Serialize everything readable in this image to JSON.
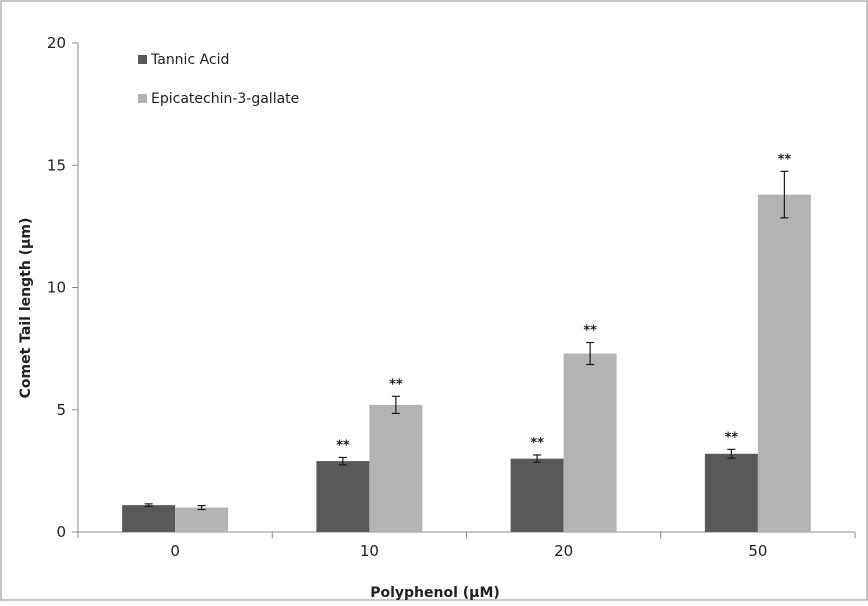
{
  "chart_data": {
    "type": "bar",
    "title": "",
    "xlabel": "Polyphenol (µM)",
    "ylabel": "Comet Tail length (µm)",
    "categories": [
      "0",
      "10",
      "20",
      "50"
    ],
    "ylim": [
      0,
      20
    ],
    "yticks": [
      0,
      5,
      10,
      15,
      20
    ],
    "grid": false,
    "legend_position": "top-left",
    "series": [
      {
        "name": "Tannic Acid",
        "color": "#595959",
        "values": [
          1.1,
          2.9,
          3.0,
          3.2
        ],
        "errors": [
          0.05,
          0.15,
          0.15,
          0.18
        ],
        "significance": [
          "",
          "**",
          "**",
          "**"
        ]
      },
      {
        "name": "Epicatechin-3-gallate",
        "color": "#b3b3b3",
        "values": [
          1.0,
          5.2,
          7.3,
          13.8
        ],
        "errors": [
          0.08,
          0.35,
          0.45,
          0.95
        ],
        "significance": [
          "",
          "**",
          "**",
          "**"
        ]
      }
    ]
  }
}
